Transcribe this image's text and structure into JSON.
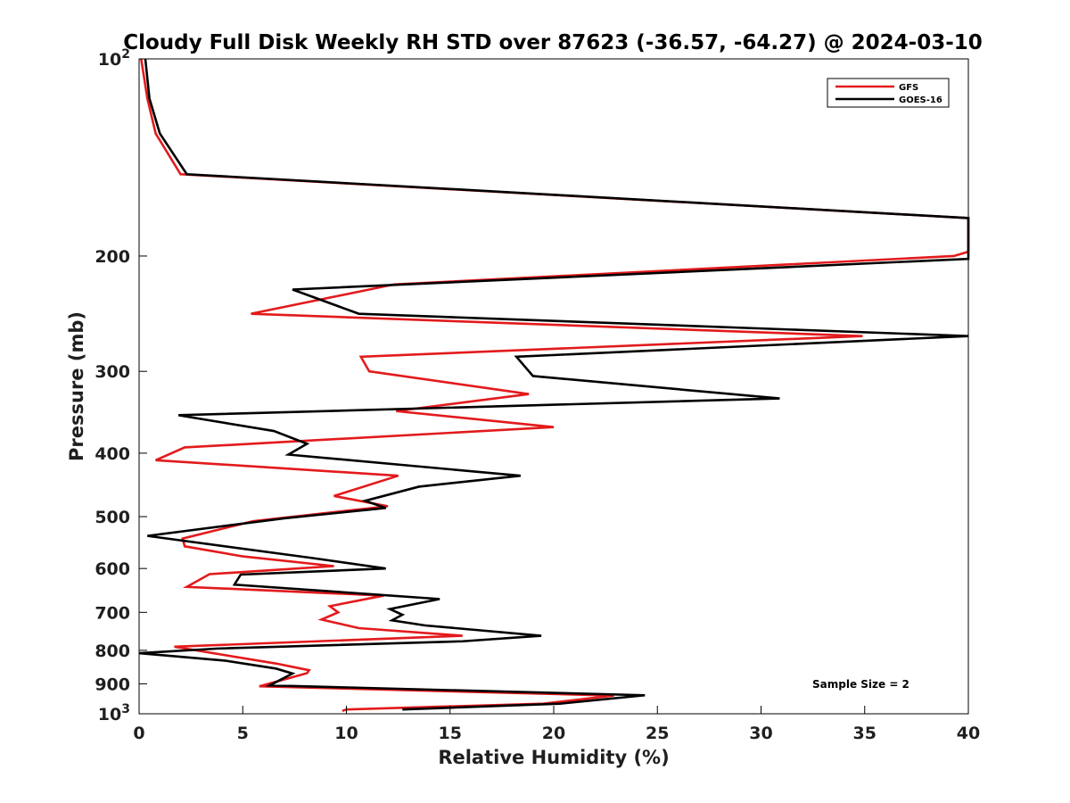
{
  "chart_data": {
    "type": "line",
    "title": "Cloudy Full Disk Weekly RH STD over 87623 (-36.57, -64.27) @ 2024-03-10",
    "xlabel": "Relative Humidity (%)",
    "ylabel": "Pressure (mb)",
    "xlim": [
      0,
      40
    ],
    "ylim": [
      100,
      1000
    ],
    "y_scale": "log",
    "y_reversed": true,
    "grid": false,
    "legend_position": "top-right",
    "x_ticks": [
      0,
      5,
      10,
      15,
      20,
      25,
      30,
      35,
      40
    ],
    "y_ticks": [
      {
        "value": 100,
        "base": "10",
        "exp": "2"
      },
      {
        "value": 200,
        "label": "200"
      },
      {
        "value": 300,
        "label": "300"
      },
      {
        "value": 400,
        "label": "400"
      },
      {
        "value": 500,
        "label": "500"
      },
      {
        "value": 600,
        "label": "600"
      },
      {
        "value": 700,
        "label": "700"
      },
      {
        "value": 800,
        "label": "800"
      },
      {
        "value": 900,
        "label": "900"
      },
      {
        "value": 1000,
        "base": "10",
        "exp": "3"
      }
    ],
    "annotation": "Sample Size = 2",
    "series": [
      {
        "name": "GFS",
        "color": "#e31a1c",
        "points": [
          [
            0.1,
            100
          ],
          [
            0.4,
            115
          ],
          [
            0.8,
            130
          ],
          [
            2.0,
            150
          ],
          [
            40.0,
            175
          ],
          [
            40.0,
            197
          ],
          [
            39.3,
            200
          ],
          [
            12.3,
            221
          ],
          [
            5.4,
            245
          ],
          [
            34.9,
            265
          ],
          [
            10.7,
            285
          ],
          [
            11.1,
            300
          ],
          [
            18.8,
            325
          ],
          [
            12.4,
            345
          ],
          [
            20.0,
            365
          ],
          [
            2.2,
            392
          ],
          [
            0.8,
            410
          ],
          [
            12.5,
            433
          ],
          [
            9.4,
            465
          ],
          [
            12.0,
            482
          ],
          [
            5.5,
            508
          ],
          [
            2.1,
            540
          ],
          [
            2.2,
            555
          ],
          [
            5.0,
            575
          ],
          [
            9.4,
            595
          ],
          [
            3.4,
            612
          ],
          [
            2.3,
            640
          ],
          [
            11.8,
            660
          ],
          [
            9.2,
            685
          ],
          [
            9.6,
            700
          ],
          [
            8.8,
            718
          ],
          [
            10.6,
            740
          ],
          [
            15.6,
            760
          ],
          [
            1.7,
            790
          ],
          [
            6.6,
            838
          ],
          [
            8.2,
            858
          ],
          [
            8.1,
            867
          ],
          [
            5.8,
            908
          ],
          [
            22.9,
            938
          ],
          [
            19.5,
            965
          ],
          [
            10.0,
            985
          ],
          [
            9.8,
            990
          ]
        ]
      },
      {
        "name": "GOES-16",
        "color": "#000000",
        "points": [
          [
            0.3,
            100
          ],
          [
            0.5,
            115
          ],
          [
            1.0,
            130
          ],
          [
            2.3,
            150
          ],
          [
            40.0,
            175
          ],
          [
            40.0,
            202
          ],
          [
            7.4,
            225
          ],
          [
            10.6,
            245
          ],
          [
            40.0,
            265
          ],
          [
            18.2,
            285
          ],
          [
            19.0,
            305
          ],
          [
            30.9,
            330
          ],
          [
            1.9,
            350
          ],
          [
            6.5,
            370
          ],
          [
            8.1,
            387
          ],
          [
            7.2,
            402
          ],
          [
            18.4,
            433
          ],
          [
            13.5,
            450
          ],
          [
            10.9,
            473
          ],
          [
            11.9,
            485
          ],
          [
            7.0,
            503
          ],
          [
            0.4,
            535
          ],
          [
            8.3,
            578
          ],
          [
            11.9,
            600
          ],
          [
            4.9,
            613
          ],
          [
            4.6,
            635
          ],
          [
            14.5,
            668
          ],
          [
            12.1,
            692
          ],
          [
            12.7,
            706
          ],
          [
            12.2,
            720
          ],
          [
            13.8,
            733
          ],
          [
            19.4,
            760
          ],
          [
            15.6,
            775
          ],
          [
            3.8,
            795
          ],
          [
            0.0,
            808
          ],
          [
            4.2,
            830
          ],
          [
            6.6,
            853
          ],
          [
            7.4,
            868
          ],
          [
            6.3,
            905
          ],
          [
            24.4,
            937
          ],
          [
            20.3,
            965
          ],
          [
            12.7,
            985
          ]
        ]
      }
    ]
  }
}
